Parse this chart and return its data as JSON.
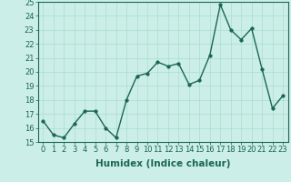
{
  "x": [
    0,
    1,
    2,
    3,
    4,
    5,
    6,
    7,
    8,
    9,
    10,
    11,
    12,
    13,
    14,
    15,
    16,
    17,
    18,
    19,
    20,
    21,
    22,
    23
  ],
  "y": [
    16.5,
    15.5,
    15.3,
    16.3,
    17.2,
    17.2,
    16.0,
    15.3,
    18.0,
    19.7,
    19.9,
    20.7,
    20.4,
    20.6,
    19.1,
    19.4,
    21.2,
    24.8,
    23.0,
    22.3,
    23.1,
    20.2,
    17.4,
    18.3
  ],
  "line_color": "#1a6655",
  "marker": "o",
  "markersize": 2.5,
  "linewidth": 1.0,
  "bg_color": "#cceee8",
  "grid_color": "#aaddcc",
  "xlabel": "Humidex (Indice chaleur)",
  "xlim": [
    -0.5,
    23.5
  ],
  "ylim": [
    15,
    25
  ],
  "yticks": [
    15,
    16,
    17,
    18,
    19,
    20,
    21,
    22,
    23,
    24,
    25
  ],
  "xticks": [
    0,
    1,
    2,
    3,
    4,
    5,
    6,
    7,
    8,
    9,
    10,
    11,
    12,
    13,
    14,
    15,
    16,
    17,
    18,
    19,
    20,
    21,
    22,
    23
  ],
  "tick_fontsize": 6,
  "label_fontsize": 7.5
}
